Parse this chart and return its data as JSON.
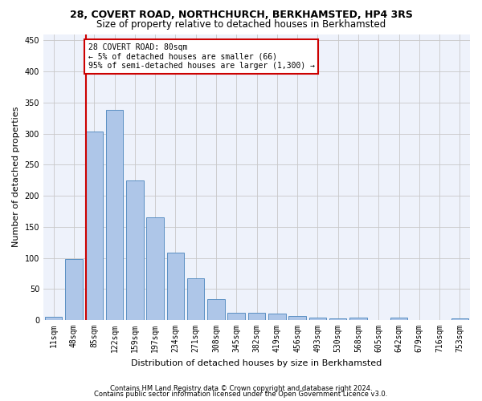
{
  "title": "28, COVERT ROAD, NORTHCHURCH, BERKHAMSTED, HP4 3RS",
  "subtitle": "Size of property relative to detached houses in Berkhamsted",
  "xlabel": "Distribution of detached houses by size in Berkhamsted",
  "ylabel": "Number of detached properties",
  "bar_labels": [
    "11sqm",
    "48sqm",
    "85sqm",
    "122sqm",
    "159sqm",
    "197sqm",
    "234sqm",
    "271sqm",
    "308sqm",
    "345sqm",
    "382sqm",
    "419sqm",
    "456sqm",
    "493sqm",
    "530sqm",
    "568sqm",
    "605sqm",
    "642sqm",
    "679sqm",
    "716sqm",
    "753sqm"
  ],
  "bar_values": [
    5,
    98,
    303,
    338,
    225,
    165,
    108,
    67,
    33,
    12,
    12,
    10,
    6,
    4,
    3,
    4,
    0,
    4,
    0,
    0,
    3
  ],
  "bar_color": "#aec6e8",
  "bar_edge_color": "#5a8fc3",
  "vline_color": "#cc0000",
  "vline_pos": 1.575,
  "annotation_text": "28 COVERT ROAD: 80sqm\n← 5% of detached houses are smaller (66)\n95% of semi-detached houses are larger (1,300) →",
  "annotation_box_color": "#cc0000",
  "annotation_bg": "#ffffff",
  "ylim": [
    0,
    460
  ],
  "yticks": [
    0,
    50,
    100,
    150,
    200,
    250,
    300,
    350,
    400,
    450
  ],
  "footer1": "Contains HM Land Registry data © Crown copyright and database right 2024.",
  "footer2": "Contains public sector information licensed under the Open Government Licence v3.0.",
  "bg_color": "#eef2fb",
  "grid_color": "#c8c8c8",
  "title_fontsize": 9,
  "subtitle_fontsize": 8.5,
  "axis_label_fontsize": 8,
  "tick_fontsize": 7,
  "footer_fontsize": 6
}
